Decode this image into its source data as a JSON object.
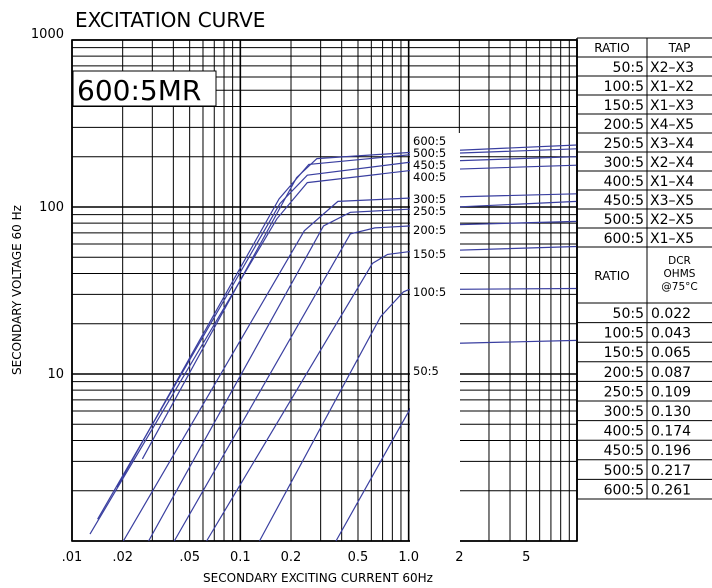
{
  "chart_data": {
    "type": "line",
    "title": "EXCITATION CURVE",
    "badge": "600:5MR",
    "xlabel": "SECONDARY EXCITING CURRENT 60Hz",
    "ylabel": "SECONDARY VOLTAGE 60 Hz",
    "x_scale": "log",
    "y_scale": "log",
    "xlim": [
      0.01,
      10
    ],
    "ylim": [
      1,
      1000
    ],
    "grid": true,
    "x_tick_labels": [
      {
        "value": 0.01,
        "label": ".01"
      },
      {
        "value": 0.02,
        "label": ".02"
      },
      {
        "value": 0.05,
        "label": ".05"
      },
      {
        "value": 0.1,
        "label": "0.1"
      },
      {
        "value": 0.2,
        "label": "0.2"
      },
      {
        "value": 0.5,
        "label": "0.5"
      },
      {
        "value": 1,
        "label": "1.0"
      },
      {
        "value": 2,
        "label": "2"
      },
      {
        "value": 5,
        "label": "5"
      }
    ],
    "y_tick_labels": [
      {
        "value": 1000,
        "label": "1000"
      },
      {
        "value": 100,
        "label": "100"
      },
      {
        "value": 10,
        "label": "10"
      }
    ],
    "series": [
      {
        "name": "600:5",
        "x": [
          0.0262,
          0.216,
          0.285,
          1.0,
          10
        ],
        "y": [
          3.1,
          150,
          195,
          212,
          235
        ]
      },
      {
        "name": "500:5",
        "x": [
          0.0185,
          0.17,
          0.255,
          1.0,
          10
        ],
        "y": [
          2.1,
          112,
          180,
          205,
          223
        ]
      },
      {
        "name": "450:5",
        "x": [
          0.0142,
          0.172,
          0.25,
          1.0,
          10
        ],
        "y": [
          1.35,
          105,
          155,
          185,
          200
        ]
      },
      {
        "name": "400:5",
        "x": [
          0.0128,
          0.165,
          0.25,
          1.0,
          10
        ],
        "y": [
          1.1,
          85,
          140,
          165,
          178
        ]
      },
      {
        "name": "300:5",
        "x": [
          0.0202,
          0.24,
          0.38,
          1.0,
          10
        ],
        "y": [
          1.0,
          72,
          108,
          113,
          120
        ]
      },
      {
        "name": "250:5",
        "x": [
          0.0285,
          0.312,
          0.45,
          1.0,
          10
        ],
        "y": [
          1.0,
          77,
          93,
          97,
          108
        ]
      },
      {
        "name": "200:5",
        "x": [
          0.0405,
          0.45,
          0.63,
          1.0,
          10
        ],
        "y": [
          1.0,
          69,
          75,
          77,
          82
        ]
      },
      {
        "name": "150:5",
        "x": [
          0.063,
          0.61,
          0.75,
          1.0,
          10
        ],
        "y": [
          1.0,
          46,
          52,
          54,
          58
        ]
      },
      {
        "name": "100:5",
        "x": [
          0.13,
          0.68,
          0.93,
          1.0,
          10
        ],
        "y": [
          1.0,
          22,
          31,
          32,
          32.5
        ]
      },
      {
        "name": "50:5",
        "x": [
          0.37,
          1.11,
          1.43,
          1.6,
          10
        ],
        "y": [
          1.0,
          7.2,
          12,
          15.2,
          15.9
        ]
      }
    ]
  },
  "ratio_tap_table": {
    "headers": [
      "RATIO",
      "TAP"
    ],
    "rows": [
      [
        "50:5",
        "X2–X3"
      ],
      [
        "100:5",
        "X1–X2"
      ],
      [
        "150:5",
        "X1–X3"
      ],
      [
        "200:5",
        "X4–X5"
      ],
      [
        "250:5",
        "X3–X4"
      ],
      [
        "300:5",
        "X2–X4"
      ],
      [
        "400:5",
        "X1–X4"
      ],
      [
        "450:5",
        "X3–X5"
      ],
      [
        "500:5",
        "X2–X5"
      ],
      [
        "600:5",
        "X1–X5"
      ]
    ]
  },
  "dcr_table": {
    "headers": [
      "RATIO",
      "DCR",
      "OHMS",
      "@75°C"
    ],
    "rows": [
      [
        "50:5",
        "0.022"
      ],
      [
        "100:5",
        "0.043"
      ],
      [
        "150:5",
        "0.065"
      ],
      [
        "200:5",
        "0.087"
      ],
      [
        "250:5",
        "0.109"
      ],
      [
        "300:5",
        "0.130"
      ],
      [
        "400:5",
        "0.174"
      ],
      [
        "450:5",
        "0.196"
      ],
      [
        "500:5",
        "0.217"
      ],
      [
        "600:5",
        "0.261"
      ]
    ]
  },
  "colors": {
    "curve": "#3a3fa0",
    "grid": "#000000",
    "background": "#ffffff"
  }
}
